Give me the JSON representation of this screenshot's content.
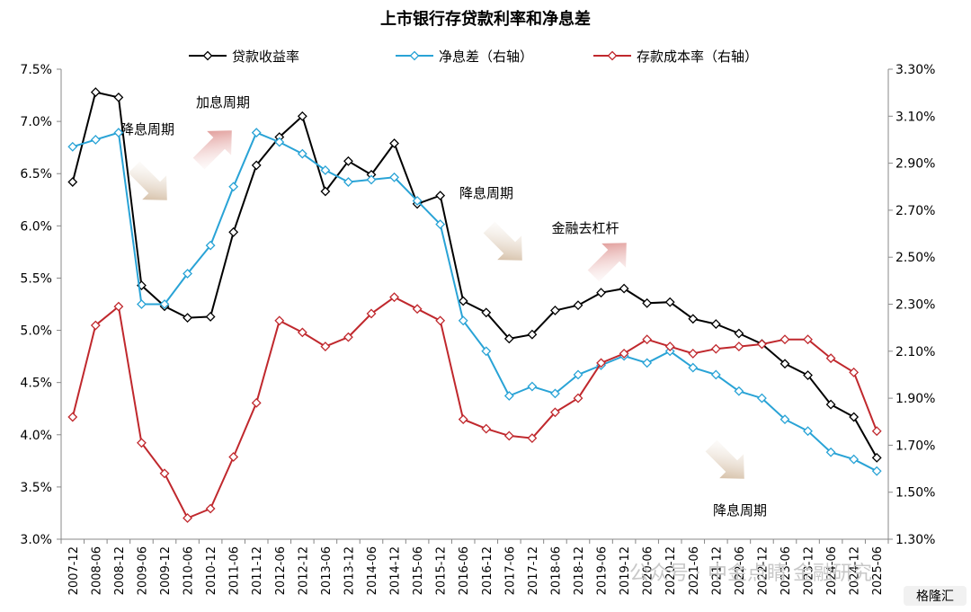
{
  "chart_data": {
    "type": "line",
    "title": "上市银行存贷款利率和净息差",
    "categories": [
      "2007-12",
      "2008-06",
      "2008-12",
      "2009-06",
      "2009-12",
      "2010-06",
      "2010-12",
      "2011-06",
      "2011-12",
      "2012-06",
      "2012-12",
      "2013-06",
      "2013-12",
      "2014-06",
      "2014-12",
      "2015-06",
      "2015-12",
      "2016-06",
      "2016-12",
      "2017-06",
      "2017-12",
      "2018-06",
      "2018-12",
      "2019-06",
      "2019-12",
      "2020-06",
      "2020-12",
      "2021-06",
      "2021-12",
      "2022-06",
      "2022-12",
      "2023-06",
      "2023-12",
      "2024-06",
      "2024-12",
      "2025-06"
    ],
    "y_left": {
      "ticks": [
        "7.5%",
        "7.0%",
        "6.5%",
        "6.0%",
        "5.5%",
        "5.0%",
        "4.5%",
        "4.0%",
        "3.5%",
        "3.0%"
      ],
      "ylim": [
        3.0,
        7.5
      ]
    },
    "y_right": {
      "ticks": [
        "3.30%",
        "3.10%",
        "2.90%",
        "2.70%",
        "2.50%",
        "2.30%",
        "2.10%",
        "1.90%",
        "1.70%",
        "1.50%",
        "1.30%"
      ],
      "ylim": [
        1.3,
        3.3
      ]
    },
    "series": [
      {
        "name": "贷款收益率",
        "axis": "left",
        "color": "#000000",
        "values": [
          6.42,
          7.28,
          7.23,
          5.43,
          5.23,
          5.12,
          5.13,
          5.94,
          6.58,
          6.85,
          7.05,
          6.33,
          6.62,
          6.49,
          6.79,
          6.21,
          6.29,
          5.28,
          5.17,
          4.92,
          4.96,
          5.19,
          5.24,
          5.36,
          5.4,
          5.26,
          5.27,
          5.11,
          5.06,
          4.97,
          4.87,
          4.68,
          4.57,
          4.29,
          4.17,
          3.78
        ]
      },
      {
        "name": "净息差（右轴）",
        "axis": "right",
        "color": "#29a3d6",
        "values": [
          2.97,
          3.0,
          3.03,
          2.3,
          2.3,
          2.43,
          2.55,
          2.8,
          3.03,
          2.99,
          2.94,
          2.87,
          2.82,
          2.83,
          2.84,
          2.74,
          2.64,
          2.23,
          2.1,
          1.91,
          1.95,
          1.92,
          2.0,
          2.04,
          2.08,
          2.05,
          2.1,
          2.03,
          2.0,
          1.93,
          1.9,
          1.81,
          1.76,
          1.67,
          1.64,
          1.59
        ]
      },
      {
        "name": "存款成本率（右轴）",
        "axis": "right",
        "color": "#c0282d",
        "values": [
          1.82,
          2.21,
          2.29,
          1.71,
          1.58,
          1.39,
          1.43,
          1.65,
          1.88,
          2.23,
          2.18,
          2.12,
          2.16,
          2.26,
          2.33,
          2.28,
          2.23,
          1.81,
          1.77,
          1.74,
          1.73,
          1.84,
          1.9,
          2.05,
          2.09,
          2.15,
          2.12,
          2.09,
          2.11,
          2.12,
          2.13,
          2.15,
          2.15,
          2.07,
          2.01,
          1.76
        ]
      }
    ],
    "annotations": [
      {
        "text": "降息周期",
        "color": "#c4a582",
        "arrow": "down-right"
      },
      {
        "text": "加息周期",
        "color": "#c0282d",
        "arrow": "up-right"
      },
      {
        "text": "降息周期",
        "color": "#c4a582",
        "arrow": "down-right"
      },
      {
        "text": "金融去杠杆",
        "color": "#c0282d",
        "arrow": "up-right"
      },
      {
        "text": "降息周期",
        "color": "#c4a582",
        "arrow": "down-right"
      }
    ],
    "legend_position": "top",
    "grid": false
  },
  "watermark": {
    "text": "公众号 · 中金点睛 金融研究",
    "badge": "格隆汇"
  }
}
